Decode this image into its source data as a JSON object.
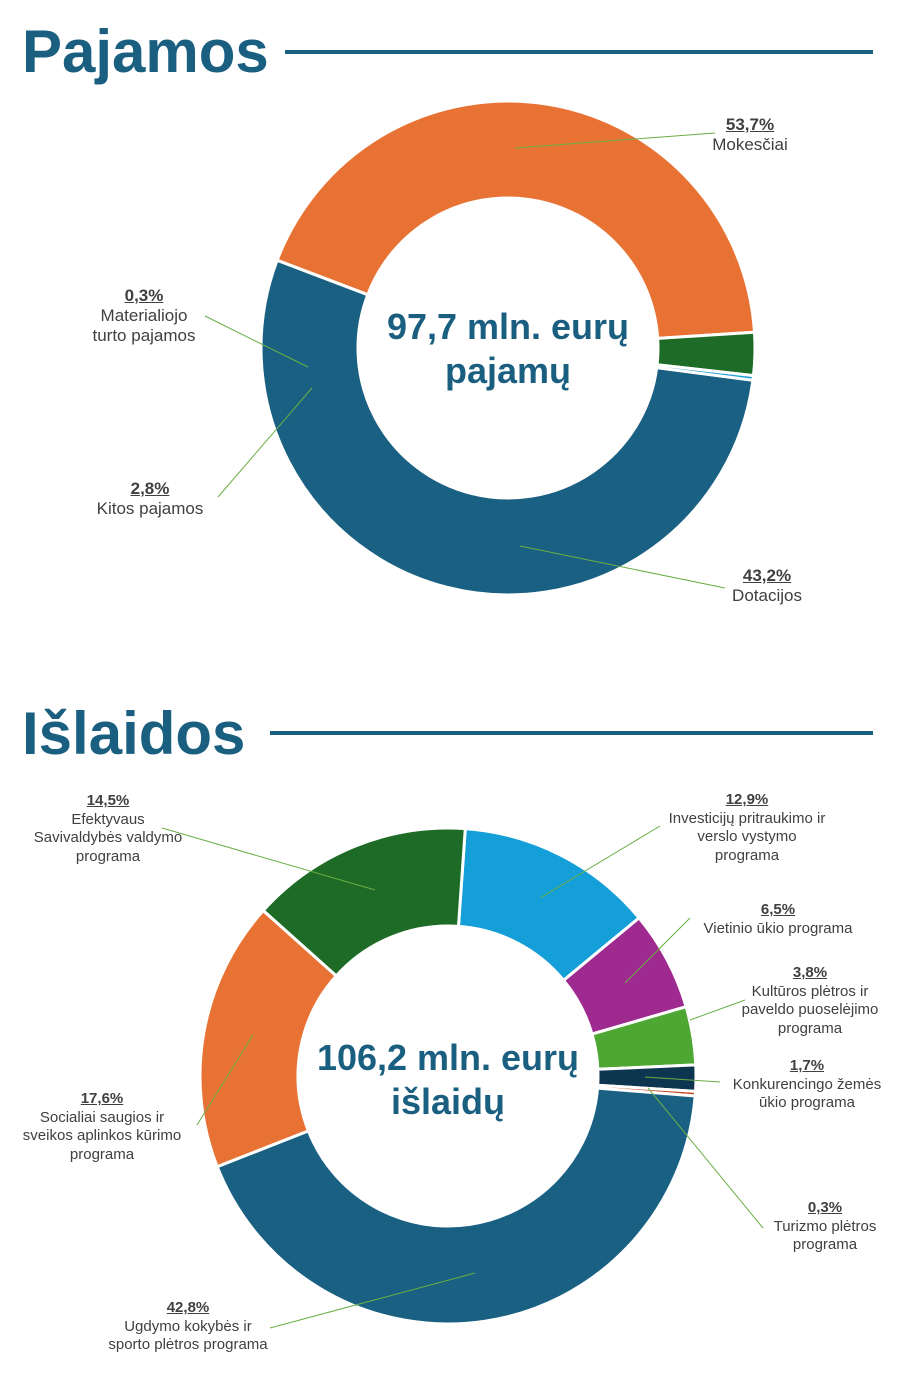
{
  "chart_data": [
    {
      "type": "pie",
      "variant": "donut",
      "title": "Pajamos",
      "center_text": [
        "97,7 mln. eurų",
        "pajamų"
      ],
      "slices": [
        {
          "name": "Mokesčiai",
          "value": 53.7,
          "label": "53,7%",
          "color": "#1a6082"
        },
        {
          "name": "Dotacijos",
          "value": 43.2,
          "label": "43,2%",
          "color": "#e87233"
        },
        {
          "name": "Kitos pajamos",
          "value": 2.8,
          "label": "2,8%",
          "color": "#1d6b26"
        },
        {
          "name": "Materialiojo\nturto pajamos",
          "value": 0.3,
          "label": "0,3%",
          "color": "#1a9fd8"
        }
      ]
    },
    {
      "type": "pie",
      "variant": "donut",
      "title": "Išlaidos",
      "center_text": [
        "106,2 mln. eurų",
        "išlaidų"
      ],
      "slices": [
        {
          "name": "Investicijų pritraukimo ir\nverslo vystymo\nprograma",
          "value": 12.9,
          "label": "12,9%",
          "color": "#149fd8"
        },
        {
          "name": "Vietinio ūkio programa",
          "value": 6.5,
          "label": "6,5%",
          "color": "#9e2a90"
        },
        {
          "name": "Kultūros plėtros ir\npaveldo puoselėjimo\nprograma",
          "value": 3.8,
          "label": "3,8%",
          "color": "#4ea733"
        },
        {
          "name": "Konkurencingo žemės\nūkio programa",
          "value": 1.7,
          "label": "1,7%",
          "color": "#0e3550"
        },
        {
          "name": "Turizmo plėtros\nprograma",
          "value": 0.3,
          "label": "0,3%",
          "color": "#c2461b"
        },
        {
          "name": "Ugdymo kokybės ir\nsporto plėtros programa",
          "value": 42.8,
          "label": "42,8%",
          "color": "#1a6082"
        },
        {
          "name": "Socialiai saugios ir\nsveikos aplinkos kūrimo\nprograma",
          "value": 17.6,
          "label": "17,6%",
          "color": "#e87233"
        },
        {
          "name": "Efektyvaus\nSavivaldybės valdymo\nprograma",
          "value": 14.5,
          "label": "14,5%",
          "color": "#1d6b26"
        }
      ]
    }
  ]
}
